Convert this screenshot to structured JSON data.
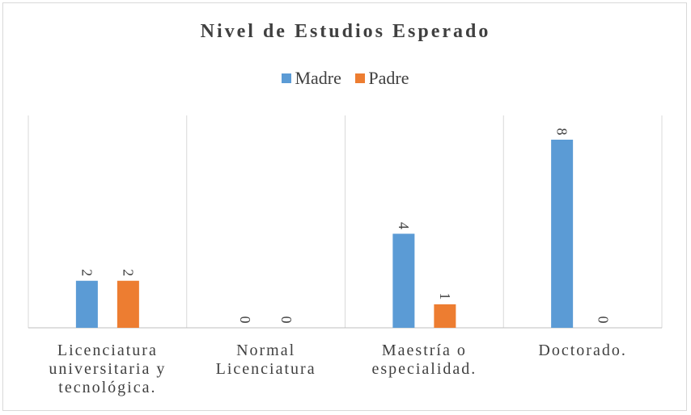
{
  "chart_data": {
    "type": "bar",
    "title": "Nivel de Estudios Esperado",
    "categories": [
      [
        "Licenciatura",
        "universitaria y",
        "tecnológica."
      ],
      [
        "Normal",
        "Licenciatura"
      ],
      [
        "Maestría o",
        "especialidad."
      ],
      [
        "Doctorado."
      ]
    ],
    "series": [
      {
        "name": "Madre",
        "values": [
          2,
          0,
          4,
          8
        ],
        "color": "#5b9bd5"
      },
      {
        "name": "Padre",
        "values": [
          2,
          0,
          1,
          0
        ],
        "color": "#ed7d31"
      }
    ],
    "ylim": [
      0,
      9
    ],
    "grid": false,
    "legend_position": "top",
    "data_labels": true,
    "data_label_rotation": "vertical"
  }
}
